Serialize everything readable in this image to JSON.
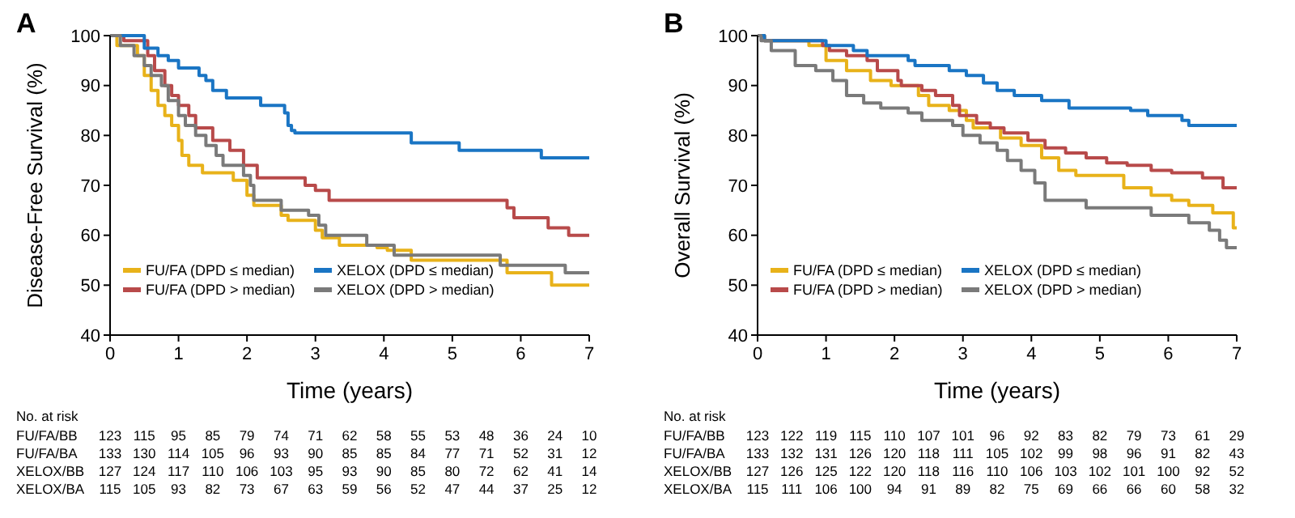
{
  "chart_data": [
    {
      "type": "step",
      "title": "A",
      "xlabel": "Time (years)",
      "ylabel": "Disease-Free Survival (%)",
      "xlim": [
        0,
        7
      ],
      "ylim": [
        40,
        100
      ],
      "xticks": [
        0,
        1,
        2,
        3,
        4,
        5,
        6,
        7
      ],
      "yticks": [
        40,
        50,
        60,
        70,
        80,
        90,
        100
      ],
      "legend": "bottom",
      "grid": false,
      "series": [
        {
          "name": "FU/FA (DPD ≤ median)",
          "color": "#e8b21a",
          "x": [
            0,
            0.1,
            0.4,
            0.5,
            0.6,
            0.7,
            0.8,
            0.9,
            1.0,
            1.05,
            1.15,
            1.35,
            1.8,
            2.0,
            2.1,
            2.5,
            2.6,
            3.0,
            3.1,
            3.35,
            3.9,
            4.05,
            4.4,
            5.8,
            6.45,
            7
          ],
          "values": [
            100,
            98,
            96,
            92,
            89,
            86,
            84,
            82,
            79,
            76,
            74,
            72.5,
            71,
            68,
            66,
            64,
            63,
            61,
            59.5,
            58,
            57.5,
            57,
            55,
            52.5,
            50,
            50
          ]
        },
        {
          "name": "FU/FA (DPD > median)",
          "color": "#b84a4a",
          "x": [
            0,
            0.2,
            0.55,
            0.65,
            0.8,
            0.9,
            1.0,
            1.15,
            1.25,
            1.5,
            1.75,
            1.95,
            2.15,
            2.85,
            3.0,
            3.2,
            5.8,
            5.9,
            6.4,
            6.7,
            7
          ],
          "values": [
            100,
            99,
            96,
            93,
            90,
            88,
            86,
            84,
            81.5,
            79,
            77,
            74,
            71.5,
            70,
            69,
            67,
            65.5,
            63.5,
            61.5,
            60,
            60
          ]
        },
        {
          "name": "XELOX (DPD ≤ median)",
          "color": "#1a75c4",
          "x": [
            0,
            0.5,
            0.7,
            0.85,
            1.0,
            1.3,
            1.4,
            1.5,
            1.7,
            2.2,
            2.55,
            2.6,
            2.65,
            2.7,
            4.4,
            5.1,
            6.3,
            7
          ],
          "values": [
            100,
            97.5,
            96,
            95,
            93.5,
            92,
            91,
            89,
            87.5,
            86,
            84.5,
            82,
            81,
            80.5,
            78.5,
            77,
            75.5,
            75.5
          ]
        },
        {
          "name": "XELOX (DPD > median)",
          "color": "#7a7a7a",
          "x": [
            0,
            0.15,
            0.35,
            0.5,
            0.6,
            0.75,
            0.85,
            1.0,
            1.1,
            1.25,
            1.4,
            1.55,
            1.65,
            1.95,
            2.05,
            2.1,
            2.5,
            2.9,
            3.05,
            3.15,
            3.75,
            4.15,
            5.7,
            6.65,
            7
          ],
          "values": [
            100,
            98,
            96,
            94,
            92,
            90,
            87,
            84,
            82,
            80,
            78,
            76,
            74,
            72,
            70,
            67,
            65,
            64,
            62,
            60,
            58,
            56,
            54,
            52.5,
            52.5
          ]
        }
      ],
      "annotations": [
        "No. at risk",
        "FU/FA/BB",
        "123 115 95 85 79 74 71 62 58 55 53 48 36 24 10",
        "FU/FA/BA",
        "133 130 114 105 96 93 90 85 85 84 77 71 52 31 12",
        "XELOX/BB",
        "127 124 117 110 106 103 95 93 90 85 80 72 62 41 14",
        "XELOX/BA",
        "115 105 93 82 73 67 63 59 56 52 47 44 37 25 12"
      ]
    },
    {
      "type": "step",
      "title": "B",
      "xlabel": "Time (years)",
      "ylabel": "Overall Survival (%)",
      "xlim": [
        0,
        7
      ],
      "ylim": [
        40,
        100
      ],
      "xticks": [
        0,
        1,
        2,
        3,
        4,
        5,
        6,
        7
      ],
      "yticks": [
        40,
        50,
        60,
        70,
        80,
        90,
        100
      ],
      "legend": "bottom",
      "grid": false,
      "series": [
        {
          "name": "FU/FA (DPD ≤ median)",
          "color": "#e8b21a",
          "x": [
            0,
            0.1,
            0.75,
            1.0,
            1.3,
            1.65,
            1.95,
            2.35,
            2.5,
            2.8,
            3.05,
            3.15,
            3.55,
            3.85,
            4.15,
            4.4,
            4.65,
            5.35,
            5.75,
            6.05,
            6.3,
            6.65,
            6.95,
            7
          ],
          "values": [
            100,
            99,
            98,
            95,
            93,
            91,
            90,
            88,
            86,
            85,
            83,
            81.5,
            79.5,
            78,
            75.5,
            73,
            72,
            69.5,
            68,
            67,
            66,
            64.5,
            61.5,
            61.5
          ]
        },
        {
          "name": "FU/FA (DPD > median)",
          "color": "#b84a4a",
          "x": [
            0,
            0.1,
            0.95,
            1.05,
            1.3,
            1.6,
            1.75,
            2.05,
            2.1,
            2.4,
            2.6,
            2.85,
            2.95,
            3.2,
            3.4,
            3.6,
            3.95,
            4.2,
            4.5,
            4.8,
            5.1,
            5.4,
            5.75,
            6.05,
            6.5,
            6.8,
            7
          ],
          "values": [
            100,
            99,
            98,
            97,
            96,
            95,
            93,
            91,
            90,
            89,
            88,
            86,
            84,
            82.5,
            81.5,
            80.5,
            79,
            77.5,
            76.5,
            75.5,
            74.5,
            74,
            73,
            72.5,
            71.5,
            69.5,
            69.5
          ]
        },
        {
          "name": "XELOX (DPD ≤ median)",
          "color": "#1a75c4",
          "x": [
            0,
            0.1,
            1.0,
            1.4,
            1.6,
            2.2,
            2.3,
            2.8,
            3.05,
            3.3,
            3.5,
            3.75,
            4.15,
            4.55,
            5.45,
            5.7,
            6.2,
            6.3,
            7
          ],
          "values": [
            100,
            99,
            98,
            97,
            96,
            95,
            94,
            93,
            92,
            90.5,
            89,
            88,
            87,
            85.5,
            85,
            84,
            83,
            82,
            82
          ]
        },
        {
          "name": "XELOX (DPD > median)",
          "color": "#7a7a7a",
          "x": [
            0,
            0.05,
            0.2,
            0.55,
            0.85,
            1.1,
            1.3,
            1.55,
            1.8,
            2.2,
            2.4,
            2.85,
            3.0,
            3.25,
            3.5,
            3.65,
            3.85,
            4.05,
            4.2,
            4.8,
            5.75,
            6.3,
            6.6,
            6.75,
            6.85,
            7
          ],
          "values": [
            100,
            99,
            97,
            94,
            93,
            91,
            88,
            86.5,
            85.5,
            84.5,
            83,
            82,
            80,
            78.5,
            77,
            75,
            73,
            70.5,
            67,
            65.5,
            64,
            62.5,
            61,
            59,
            57.5,
            57.5
          ]
        }
      ],
      "annotations": [
        "No. at risk",
        "FU/FA/BB",
        "123 122 119 115 110 107 101 96 92 83 82 79 73 61 29",
        "FU/FA/BA",
        "133 132 131 126 120 118 111 105 102 99 98 96 91 82 43",
        "XELOX/BB",
        "127 126 125 122 120 118 116 110 106 103 102 101 100 92 52",
        "XELOX/BA",
        "115 111 106 100 94 91 89 82 75 69 66 66 60 58 32"
      ]
    }
  ]
}
